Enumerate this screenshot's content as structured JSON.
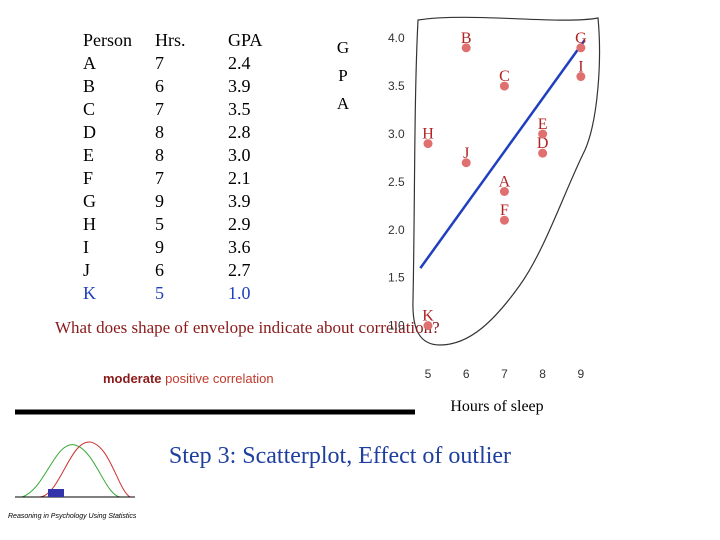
{
  "table": {
    "headers": [
      "Person",
      "Hrs.",
      "GPA"
    ],
    "rows": [
      [
        "A",
        "7",
        "2.4"
      ],
      [
        "B",
        "6",
        "3.9"
      ],
      [
        "C",
        "7",
        "3.5"
      ],
      [
        "D",
        "8",
        "2.8"
      ],
      [
        "E",
        "8",
        "3.0"
      ],
      [
        "F",
        "7",
        "2.1"
      ],
      [
        "G",
        "9",
        "3.9"
      ],
      [
        "H",
        "5",
        "2.9"
      ],
      [
        "I",
        "9",
        "3.6"
      ],
      [
        "J",
        "6",
        "2.7"
      ],
      [
        "K",
        "5",
        "1.0"
      ]
    ]
  },
  "question": "What does shape of envelope indicate about correlation?",
  "answer": {
    "emphasis": "moderate",
    "rest": "positive correlation"
  },
  "title": "Step 3: Scatterplot, Effect of outlier",
  "footer": "Reasoning in Psychology Using Statistics",
  "chart_data": {
    "type": "scatter",
    "xlabel": "Hours of sleep",
    "ylabel": "GPA",
    "x": [
      7,
      6,
      7,
      8,
      8,
      7,
      9,
      5,
      9,
      6,
      5
    ],
    "values": [
      2.4,
      3.9,
      3.5,
      2.8,
      3.0,
      2.1,
      3.9,
      2.9,
      3.6,
      2.7,
      1.0
    ],
    "color": "#e07070",
    "xlim": [
      4.66,
      9.37
    ],
    "ylim": [
      0.85,
      4.19
    ],
    "xticks": [
      5,
      6,
      7,
      8,
      9
    ],
    "yticks": [
      {
        "value": 1,
        "label": "1.0"
      },
      {
        "value": 1.5,
        "label": "1.5"
      },
      {
        "value": 2,
        "label": "2.0"
      },
      {
        "value": 2.5,
        "label": "2.5"
      },
      {
        "value": 3,
        "label": "3.0"
      },
      {
        "value": 3.5,
        "label": "3.5"
      },
      {
        "value": 4,
        "label": "4.0"
      }
    ],
    "trend_line": {
      "color": "#1f3fbf",
      "x": [
        4.8,
        9.1
      ],
      "values": [
        1.6,
        3.98
      ]
    }
  }
}
